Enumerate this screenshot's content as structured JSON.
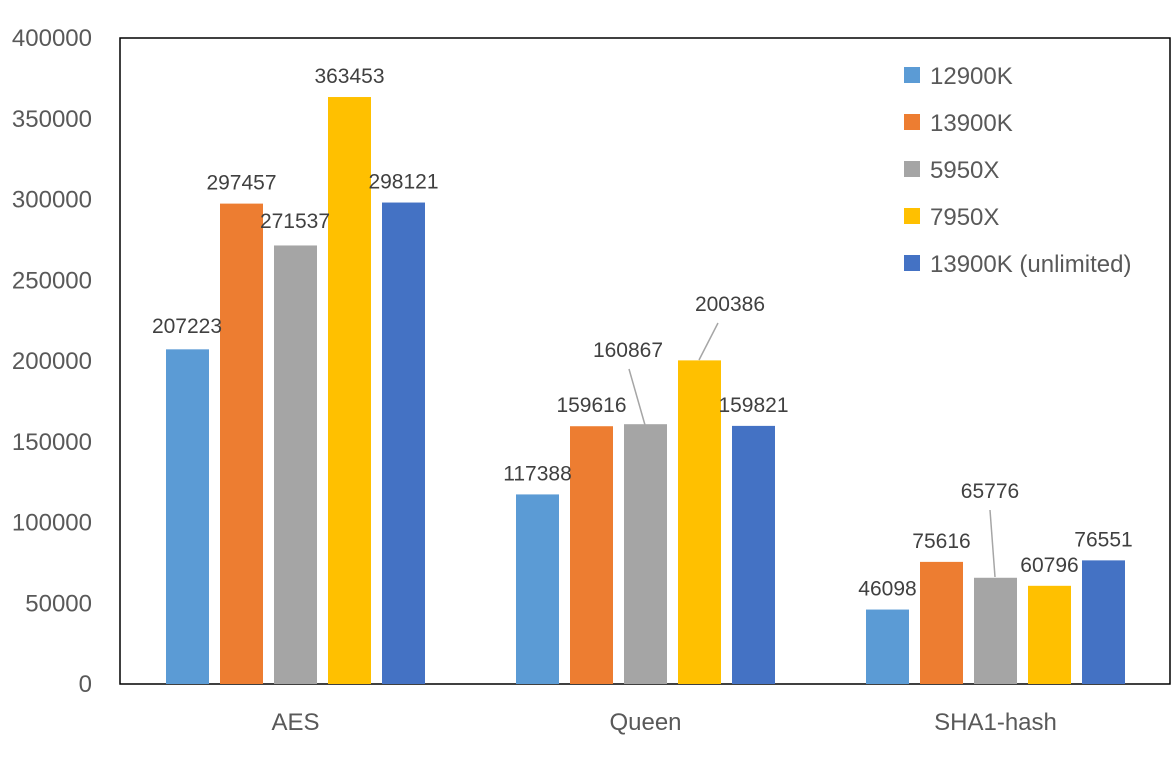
{
  "chart_data": {
    "type": "bar",
    "title": "",
    "xlabel": "",
    "ylabel": "",
    "categories": [
      "AES",
      "Queen",
      "SHA1-hash"
    ],
    "ylim": [
      0,
      400000
    ],
    "yticks": [
      "0",
      "50000",
      "100000",
      "150000",
      "200000",
      "250000",
      "300000",
      "350000",
      "400000"
    ],
    "grid": false,
    "legend": "top-right",
    "series": [
      {
        "name": "12900K",
        "color": "#5B9BD5",
        "values": [
          207223,
          117388,
          46098
        ]
      },
      {
        "name": "13900K",
        "color": "#ED7D31",
        "values": [
          297457,
          159616,
          75616
        ]
      },
      {
        "name": "5950X",
        "color": "#A5A5A5",
        "values": [
          271537,
          160867,
          65776
        ]
      },
      {
        "name": "7950X",
        "color": "#FFC000",
        "values": [
          363453,
          200386,
          60796
        ]
      },
      {
        "name": "13900K (unlimited)",
        "color": "#4472C4",
        "values": [
          298121,
          159821,
          76551
        ]
      }
    ],
    "data_labels": [
      [
        "207223",
        "117388",
        "46098"
      ],
      [
        "297457",
        "159616",
        "75616"
      ],
      [
        "271537",
        "160867",
        "65776"
      ],
      [
        "363453",
        "200386",
        "60796"
      ],
      [
        "298121",
        "159821",
        "76551"
      ]
    ]
  }
}
